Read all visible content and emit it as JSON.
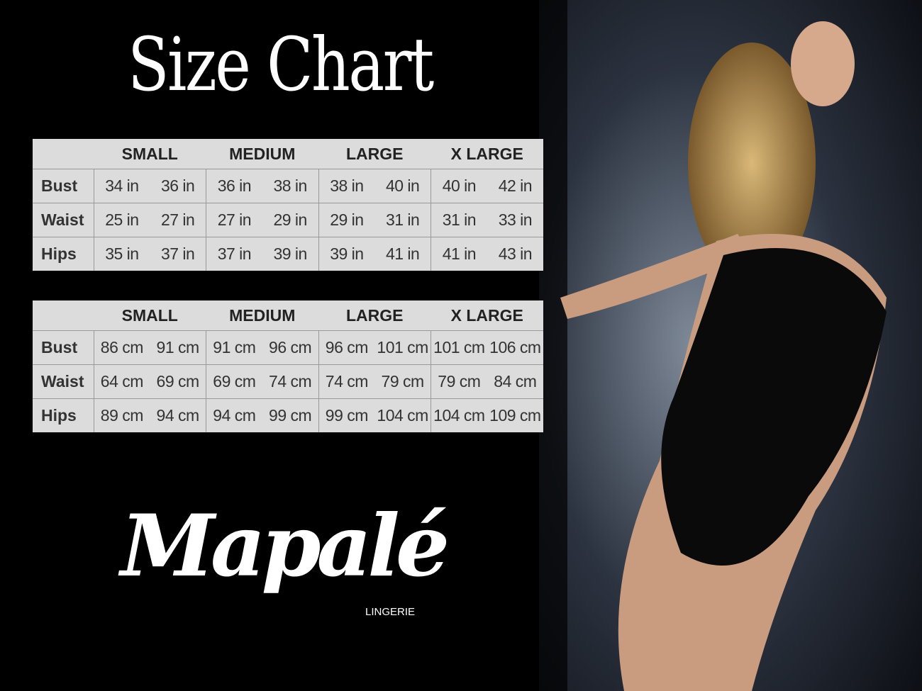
{
  "title": "Size Chart",
  "tables": [
    {
      "headers": [
        "SMALL",
        "MEDIUM",
        "LARGE",
        "X LARGE"
      ],
      "rows": [
        {
          "label": "Bust",
          "cells": [
            "34 in",
            "36 in",
            "36 in",
            "38 in",
            "38 in",
            "40 in",
            "40 in",
            "42 in"
          ]
        },
        {
          "label": "Waist",
          "cells": [
            "25 in",
            "27 in",
            "27 in",
            "29 in",
            "29 in",
            "31 in",
            "31 in",
            "33 in"
          ]
        },
        {
          "label": "Hips",
          "cells": [
            "35 in",
            "37 in",
            "37 in",
            "39 in",
            "39 in",
            "41 in",
            "41 in",
            "43 in"
          ]
        }
      ]
    },
    {
      "headers": [
        "SMALL",
        "MEDIUM",
        "LARGE",
        "X LARGE"
      ],
      "rows": [
        {
          "label": "Bust",
          "cells": [
            "86 cm",
            "91 cm",
            "91 cm",
            "96 cm",
            "96 cm",
            "101 cm",
            "101 cm",
            "106 cm"
          ]
        },
        {
          "label": "Waist",
          "cells": [
            "64 cm",
            "69 cm",
            "69 cm",
            "74 cm",
            "74 cm",
            "79 cm",
            "79 cm",
            "84 cm"
          ]
        },
        {
          "label": "Hips",
          "cells": [
            "89 cm",
            "94 cm",
            "94 cm",
            "99 cm",
            "99 cm",
            "104 cm",
            "104 cm",
            "109 cm"
          ]
        }
      ]
    }
  ],
  "logo": {
    "brand": "Mapalé",
    "tagline": "LINGERIE"
  }
}
